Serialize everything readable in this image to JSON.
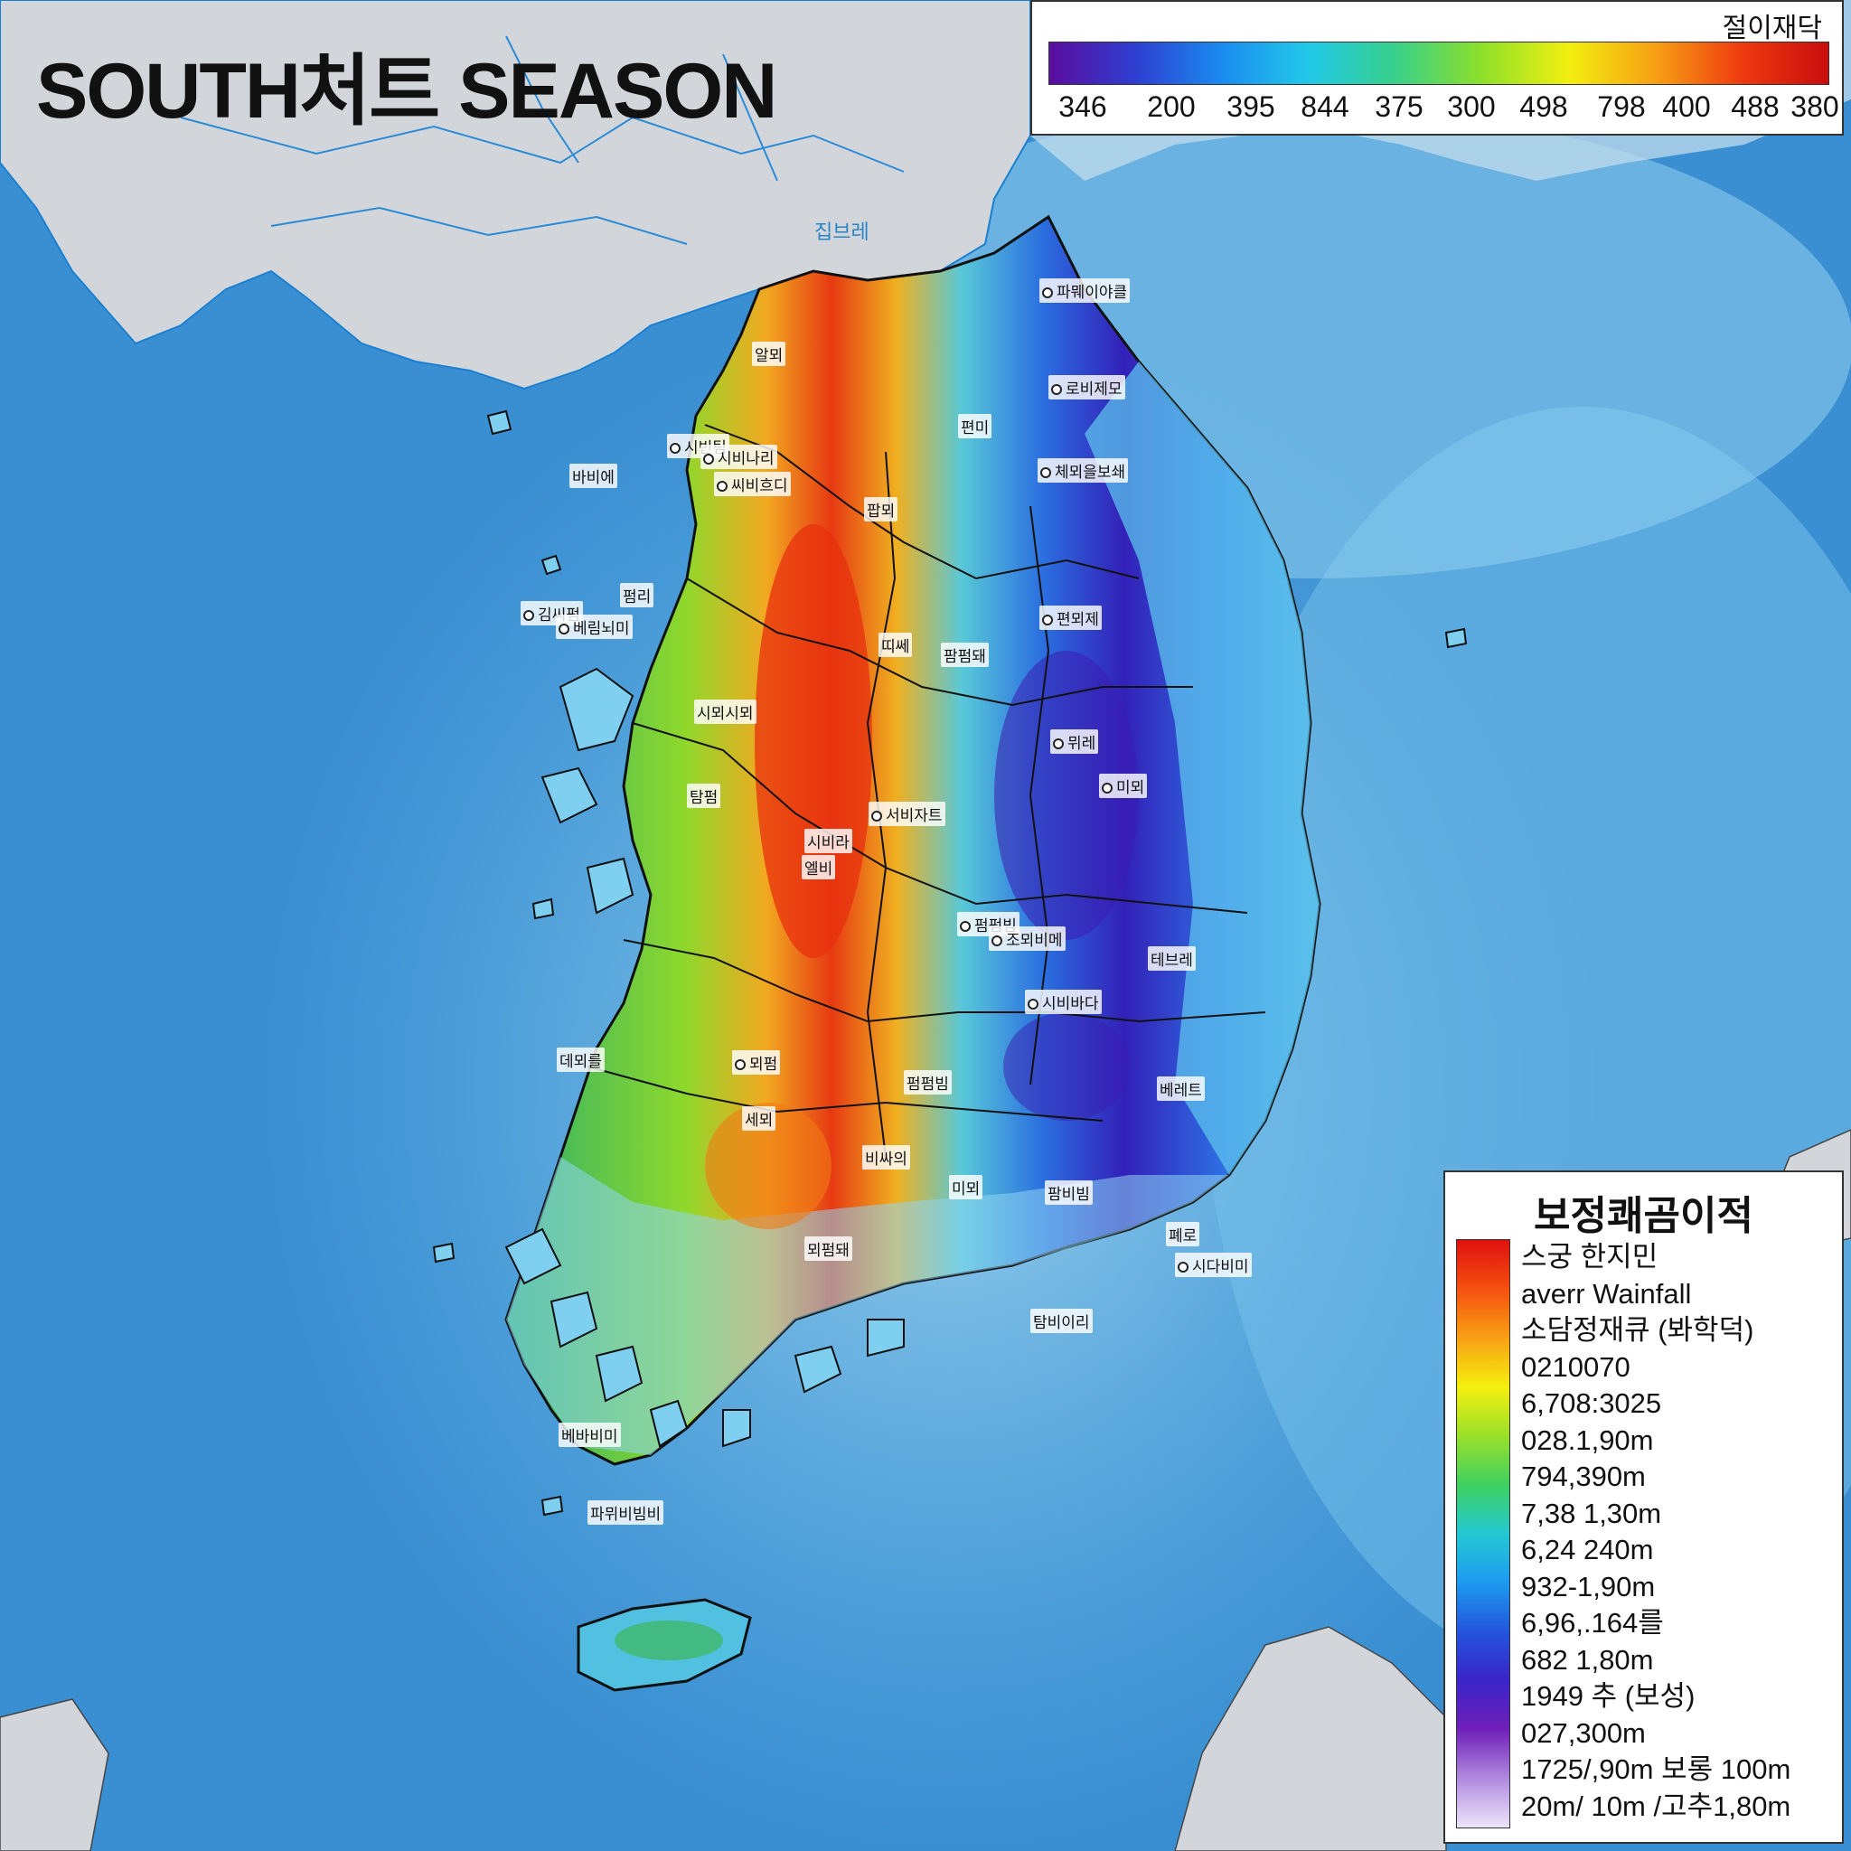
{
  "title": "SOUTH처트 SEASON",
  "scale": {
    "title": "절이재닥",
    "ticks": [
      "346",
      "200",
      "395",
      "844",
      "375",
      "300",
      "498",
      "798",
      "400",
      "488",
      "380"
    ]
  },
  "legend": {
    "title": "보정쾌곰이적",
    "items": [
      "스궁 한지민",
      "averr Wainfall",
      "소담정재큐 (봐학덕)",
      "0210070",
      "6,708:3025",
      "028.1,90m",
      "794,390m",
      "7,38 1,30m",
      "6,24 240m",
      "932-1,90m",
      "6,96,.164를",
      "682 1,80m",
      "1949 추 (보성)",
      "027,300m",
      "1725/,90m 보롱 100m",
      "20m/ 10m /고추1,80m"
    ]
  },
  "places": [
    {
      "name": "집브레",
      "icon": "none"
    },
    {
      "name": "파뭬이야클",
      "icon": "dot"
    },
    {
      "name": "로비제모",
      "icon": "dot"
    },
    {
      "name": "알뫼",
      "icon": "none"
    },
    {
      "name": "시빈팀",
      "icon": "dot"
    },
    {
      "name": "편미",
      "icon": "none"
    },
    {
      "name": "체뫼을보쇄",
      "icon": "dot"
    },
    {
      "name": "시비나리",
      "icon": "dot"
    },
    {
      "name": "씨비흐디",
      "icon": "dot"
    },
    {
      "name": "바비에",
      "icon": "none"
    },
    {
      "name": "펌리",
      "icon": "none"
    },
    {
      "name": "김씨펌",
      "icon": "dot"
    },
    {
      "name": "베림뇌미",
      "icon": "dot"
    },
    {
      "name": "팝뫼",
      "icon": "none"
    },
    {
      "name": "띠쎄",
      "icon": "none"
    },
    {
      "name": "팜펌돼",
      "icon": "none"
    },
    {
      "name": "편뫼제",
      "icon": "dot"
    },
    {
      "name": "시뫼시뫼",
      "icon": "none"
    },
    {
      "name": "뮈레",
      "icon": "dot"
    },
    {
      "name": "미뫼",
      "icon": "dot"
    },
    {
      "name": "탐펌",
      "icon": "none"
    },
    {
      "name": "서비자트",
      "icon": "dot"
    },
    {
      "name": "시비라",
      "icon": "none"
    },
    {
      "name": "엘비",
      "icon": "none"
    },
    {
      "name": "펌펌빔",
      "icon": "dot"
    },
    {
      "name": "조뫼비메",
      "icon": "dot"
    },
    {
      "name": "시비바다",
      "icon": "dot"
    },
    {
      "name": "테브레",
      "icon": "none"
    },
    {
      "name": "데뫼를",
      "icon": "none"
    },
    {
      "name": "뫼펌",
      "icon": "dot"
    },
    {
      "name": "펌펌빔",
      "icon": "none"
    },
    {
      "name": "세뫼",
      "icon": "none"
    },
    {
      "name": "비싸의",
      "icon": "none"
    },
    {
      "name": "미뫼",
      "icon": "none"
    },
    {
      "name": "팜비빔",
      "icon": "none"
    },
    {
      "name": "시다비미",
      "icon": "dot"
    },
    {
      "name": "뫼펌돼",
      "icon": "none"
    },
    {
      "name": "폐로",
      "icon": "none"
    },
    {
      "name": "베레트",
      "icon": "none"
    },
    {
      "name": "파뮈비빔비",
      "icon": "none"
    },
    {
      "name": "베바비미",
      "icon": "none"
    },
    {
      "name": "탐비이리",
      "icon": "none"
    }
  ]
}
